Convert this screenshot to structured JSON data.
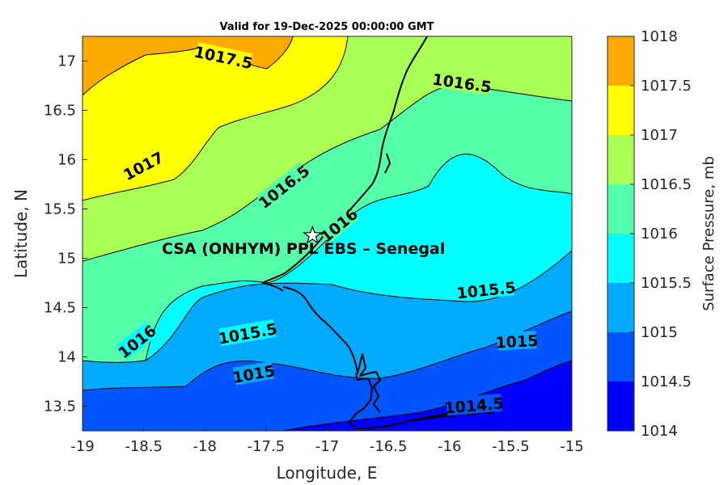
{
  "chart_data": {
    "type": "contour-map",
    "title": "Valid for 19-Dec-2025 00:00:00 GMT",
    "xlabel": "Longitude, E",
    "ylabel": "Latitude, N",
    "xlim": [
      -19,
      -15
    ],
    "ylim": [
      13.25,
      17.25
    ],
    "xticks": [
      "-19",
      "-18.5",
      "-18",
      "-17.5",
      "-17",
      "-16.5",
      "-16",
      "-15.5",
      "-15"
    ],
    "yticks": [
      "13.5",
      "14",
      "14.5",
      "15",
      "15.5",
      "16",
      "16.5",
      "17"
    ],
    "colorbar": {
      "label": "Surface Pressure, mb",
      "levels": [
        "1014",
        "1014.5",
        "1015",
        "1015.5",
        "1016",
        "1016.5",
        "1017",
        "1017.5",
        "1018"
      ],
      "colors": [
        "#0000ff",
        "#0055ff",
        "#00aaff",
        "#00ffff",
        "#55ffaa",
        "#aaff55",
        "#ffff00",
        "#ffaa00",
        "#ff5500"
      ]
    },
    "contour_labels": [
      {
        "text": "1017.5",
        "lon": -17.85,
        "lat": 17.03
      },
      {
        "text": "1016.5",
        "lon": -15.9,
        "lat": 16.77
      },
      {
        "text": "1017",
        "lon": -18.5,
        "lat": 15.93
      },
      {
        "text": "1016.5",
        "lon": -17.35,
        "lat": 15.72
      },
      {
        "text": "1016",
        "lon": -16.9,
        "lat": 15.33
      },
      {
        "text": "1015.5",
        "lon": -15.7,
        "lat": 14.67
      },
      {
        "text": "1016",
        "lon": -18.55,
        "lat": 14.15
      },
      {
        "text": "1015.5",
        "lon": -17.65,
        "lat": 14.23
      },
      {
        "text": "1015",
        "lon": -15.45,
        "lat": 14.15
      },
      {
        "text": "1015",
        "lon": -17.6,
        "lat": 13.82
      },
      {
        "text": "1014.5",
        "lon": -15.8,
        "lat": 13.5
      }
    ],
    "site": {
      "name": "CSA (ONHYM) PPL EBS  – Senegal",
      "lon": -17.12,
      "lat": 15.23,
      "marker": "star"
    }
  }
}
